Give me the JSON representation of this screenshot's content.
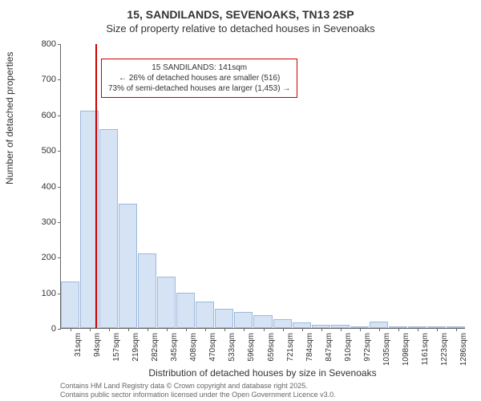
{
  "titles": {
    "main": "15, SANDILANDS, SEVENOAKS, TN13 2SP",
    "sub": "Size of property relative to detached houses in Sevenoaks"
  },
  "axes": {
    "y_label": "Number of detached properties",
    "x_label": "Distribution of detached houses by size in Sevenoaks",
    "y_ticks": [
      0,
      100,
      200,
      300,
      400,
      500,
      600,
      700,
      800
    ],
    "y_max": 800,
    "x_ticks": [
      "31sqm",
      "94sqm",
      "157sqm",
      "219sqm",
      "282sqm",
      "345sqm",
      "408sqm",
      "470sqm",
      "533sqm",
      "596sqm",
      "659sqm",
      "721sqm",
      "784sqm",
      "847sqm",
      "910sqm",
      "972sqm",
      "1035sqm",
      "1098sqm",
      "1161sqm",
      "1223sqm",
      "1286sqm"
    ]
  },
  "chart": {
    "type": "histogram",
    "bar_color": "#d6e3f5",
    "bar_border": "#9db8dd",
    "marker_color": "#cc0000",
    "background_color": "#ffffff",
    "values": [
      130,
      610,
      560,
      350,
      210,
      145,
      100,
      75,
      55,
      45,
      35,
      25,
      15,
      10,
      10,
      5,
      18,
      5,
      3,
      2,
      0
    ],
    "marker_position_pct": 8.5
  },
  "infobox": {
    "line1": "15 SANDILANDS: 141sqm",
    "line2": "← 26% of detached houses are smaller (516)",
    "line3": "73% of semi-detached houses are larger (1,453) →"
  },
  "footer": {
    "line1": "Contains HM Land Registry data © Crown copyright and database right 2025.",
    "line2": "Contains public sector information licensed under the Open Government Licence v3.0."
  }
}
